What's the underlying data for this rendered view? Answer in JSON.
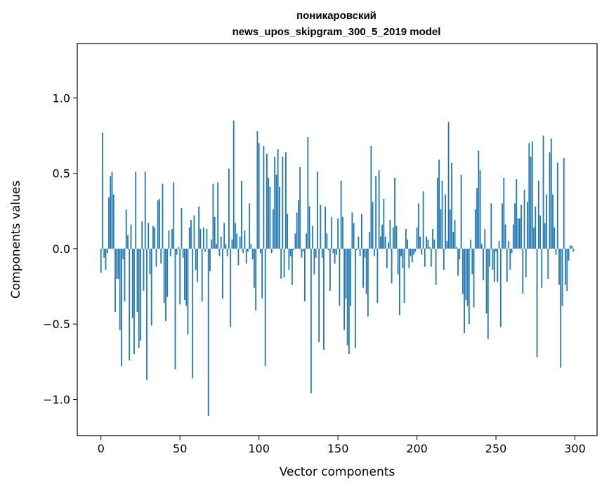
{
  "chart_data": {
    "type": "bar",
    "title_line1": "поникаровский",
    "title_line2": "news_upos_skipgram_300_5_2019 model",
    "xlabel": "Vector components",
    "ylabel": "Components values",
    "xlim": [
      -15,
      314
    ],
    "ylim": [
      -1.24,
      1.36
    ],
    "xticks": [
      0,
      50,
      100,
      150,
      200,
      250,
      300
    ],
    "yticks": [
      -1.0,
      -0.5,
      0.0,
      0.5,
      1.0
    ],
    "ytick_labels": [
      "−1.0",
      "−0.5",
      "0.0",
      "0.5",
      "1.0"
    ],
    "bar_color": "#1f77b4",
    "values": [
      -0.16,
      0.77,
      -0.06,
      -0.14,
      -0.03,
      0.34,
      0.48,
      0.51,
      0.36,
      -0.42,
      -0.2,
      -0.2,
      -0.54,
      -0.78,
      -0.07,
      -0.35,
      0.26,
      0.09,
      -0.74,
      0.16,
      -0.46,
      -0.7,
      0.51,
      -0.42,
      -0.66,
      -0.61,
      0.18,
      -0.28,
      0.51,
      -0.87,
      0.17,
      -0.17,
      -0.51,
      0.15,
      0.14,
      -0.12,
      0.32,
      0.33,
      -0.1,
      0.43,
      -0.36,
      -0.48,
      -0.32,
      0.12,
      -0.05,
      0.13,
      0.44,
      -0.8,
      -0.04,
      0.01,
      -0.37,
      0.27,
      -0.06,
      -0.34,
      -0.38,
      -0.57,
      0.14,
      0.19,
      -0.86,
      0.22,
      -0.14,
      -0.22,
      0.28,
      0.13,
      -0.35,
      0.14,
      -0.02,
      0.13,
      -1.11,
      -0.15,
      0.06,
      0.43,
      0.21,
      0.03,
      0.44,
      -0.05,
      0.08,
      -0.33,
      0.17,
      0.03,
      -0.05,
      0.53,
      -0.52,
      0.06,
      0.85,
      0.17,
      0.1,
      -0.11,
      0.08,
      0.45,
      -0.03,
      0.12,
      -0.1,
      -0.02,
      0.3,
      0.03,
      -0.07,
      -0.26,
      -0.41,
      0.78,
      0.7,
      -0.03,
      -0.33,
      0.68,
      -0.78,
      0.63,
      0.47,
      0.41,
      -0.03,
      0.26,
      0.61,
      0.49,
      0.66,
      0.41,
      -0.2,
      0.61,
      -0.19,
      0.64,
      0.23,
      -0.14,
      -0.05,
      -0.24,
      -0.01,
      0.1,
      0.24,
      0.32,
      0.54,
      -0.06,
      -0.02,
      -0.35,
      0.1,
      0.74,
      0.28,
      -0.96,
      0.15,
      -0.17,
      -0.06,
      0.51,
      -0.62,
      0.29,
      -0.06,
      -0.67,
      0.28,
      0.1,
      -0.01,
      -0.28,
      0.21,
      -0.03,
      -0.1,
      -0.04,
      0.2,
      -0.38,
      0.45,
      0.21,
      -0.54,
      -0.33,
      -0.64,
      -0.7,
      -0.38,
      0.24,
      0.17,
      -0.66,
      -0.01,
      0.08,
      -0.05,
      0.23,
      -0.26,
      -0.06,
      -0.3,
      -0.45,
      0.11,
      0.68,
      0.31,
      -0.05,
      0.48,
      -0.36,
      0.52,
      0.08,
      0.16,
      0.33,
      0.08,
      -0.13,
      0.04,
      0.19,
      -0.23,
      0.14,
      0.47,
      0.15,
      -0.17,
      -0.44,
      -0.05,
      -0.13,
      -0.36,
      0.13,
      0.06,
      -0.13,
      -0.05,
      -0.09,
      -0.04,
      -0.02,
      0.14,
      0.3,
      0.08,
      -0.04,
      0.38,
      -0.12,
      0.08,
      0.06,
      0.01,
      -0.12,
      0.13,
      0.06,
      -0.24,
      0.47,
      0.59,
      0.26,
      0.45,
      -0.14,
      0.36,
      0.05,
      0.84,
      0.26,
      0.57,
      0.11,
      0.19,
      0.01,
      -0.18,
      -0.07,
      0.49,
      -0.3,
      -0.56,
      -0.34,
      -0.38,
      -0.5,
      0.06,
      -0.17,
      -0.39,
      0.26,
      0.4,
      0.65,
      0.52,
      0.03,
      -0.21,
      0.13,
      -0.43,
      -0.6,
      -0.12,
      0.3,
      -0.14,
      -0.22,
      -0.02,
      -0.22,
      0.05,
      -0.52,
      0.3,
      0.47,
      0.16,
      -0.22,
      0.05,
      -0.14,
      -0.03,
      0.16,
      0.3,
      0.46,
      0.2,
      0.2,
      0.29,
      -0.3,
      0.39,
      -0.19,
      0.31,
      0.7,
      0.61,
      0.71,
      0.14,
      0.28,
      -0.72,
      0.45,
      0.22,
      -0.26,
      0.75,
      0.17,
      0.36,
      -0.2,
      0.64,
      0.73,
      0.36,
      0.14,
      -0.04,
      0.57,
      -0.24,
      -0.79,
      -0.38,
      0.6,
      -0.24,
      -0.28,
      -0.08,
      0.02,
      0.02,
      -0.02
    ]
  }
}
